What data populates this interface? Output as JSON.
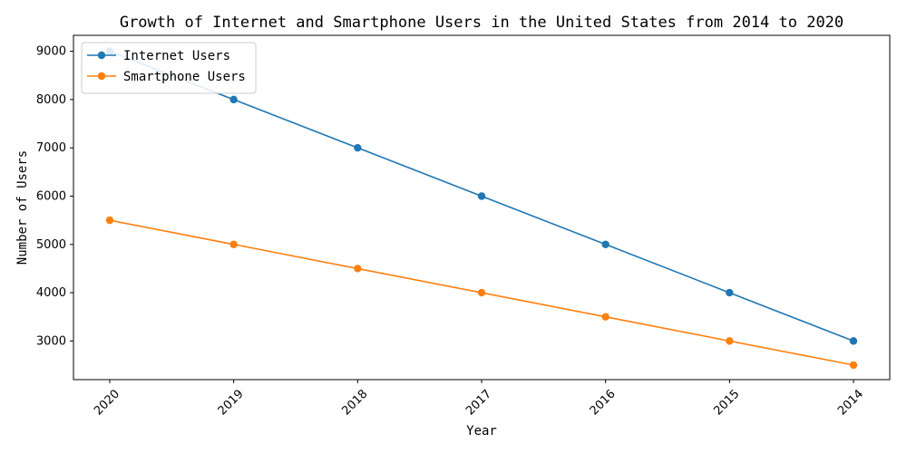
{
  "chart_data": {
    "type": "line",
    "title": "Growth of Internet and Smartphone Users in the United States from 2014 to 2020",
    "xlabel": "Year",
    "ylabel": "Number of Users",
    "categories": [
      "2020",
      "2019",
      "2018",
      "2017",
      "2016",
      "2015",
      "2014"
    ],
    "yticks": [
      3000,
      4000,
      5000,
      6000,
      7000,
      8000,
      9000
    ],
    "ylim": [
      2200,
      9330
    ],
    "grid": false,
    "legend_position": "top-left",
    "series": [
      {
        "name": "Internet Users",
        "color": "#1f77b4",
        "values": [
          9000,
          8000,
          7000,
          6000,
          5000,
          4000,
          3000
        ]
      },
      {
        "name": "Smartphone Users",
        "color": "#ff7f0e",
        "values": [
          5500,
          5000,
          4500,
          4000,
          3500,
          3000,
          2500
        ]
      }
    ]
  }
}
